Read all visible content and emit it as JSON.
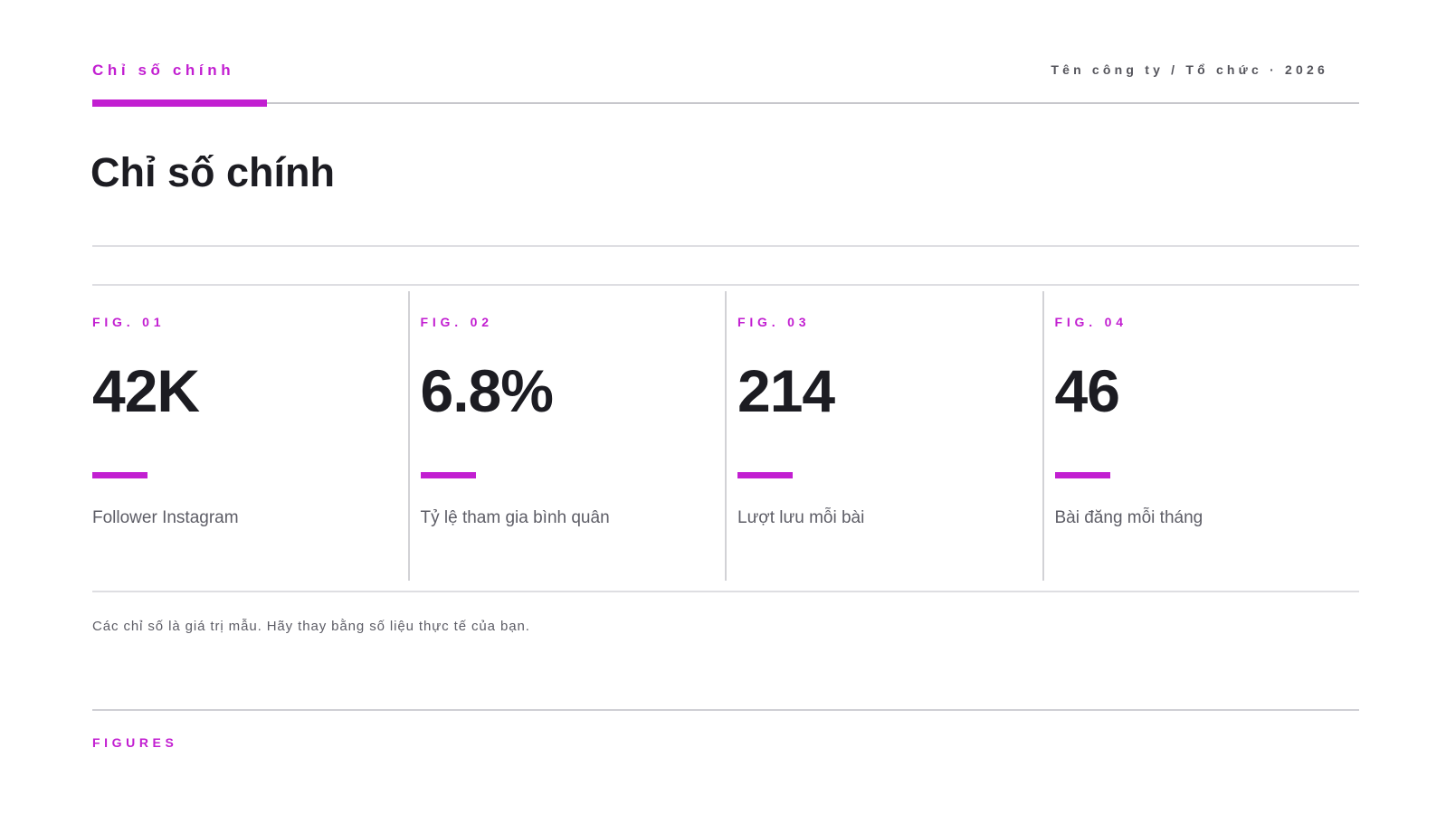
{
  "header": {
    "section_label": "Chỉ số chính",
    "company": "Tên công ty / Tổ chức · 2026"
  },
  "title": "Chỉ số chính",
  "metrics": [
    {
      "fig": "FIG. 01",
      "value": "42K",
      "label": "Follower Instagram"
    },
    {
      "fig": "FIG. 02",
      "value": "6.8%",
      "label": "Tỷ lệ tham gia bình quân"
    },
    {
      "fig": "FIG. 03",
      "value": "214",
      "label": "Lượt lưu mỗi bài"
    },
    {
      "fig": "FIG. 04",
      "value": "46",
      "label": "Bài đăng mỗi tháng"
    }
  ],
  "note": "Các chỉ số là giá trị mẫu. Hãy thay bằng số liệu thực tế của bạn.",
  "footer": {
    "label": "FIGURES"
  },
  "colors": {
    "accent": "#c21fd1",
    "text": "#1c1c22",
    "muted": "#5d5d66",
    "rule": "#c7c7cc"
  }
}
